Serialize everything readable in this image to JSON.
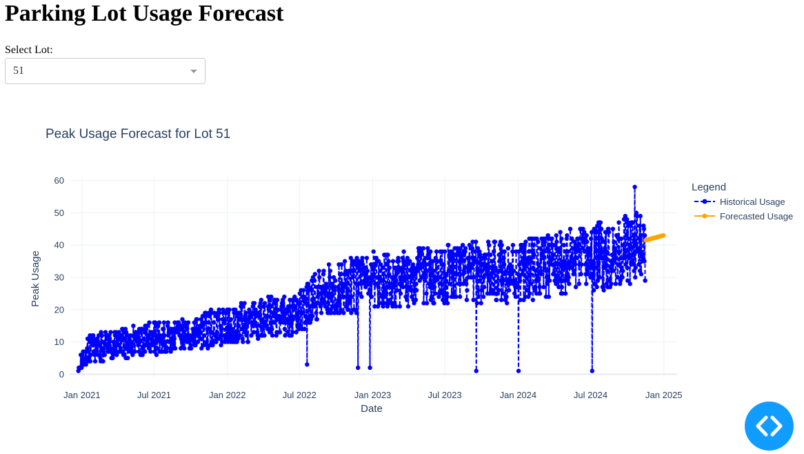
{
  "page": {
    "title": "Parking Lot Usage Forecast",
    "select_label": "Select Lot:",
    "selected_lot": "51"
  },
  "fab": {
    "icon": "code-icon",
    "color": "#119dff"
  },
  "chart_data": {
    "type": "line",
    "title": "Peak Usage Forecast for Lot 51",
    "xlabel": "Date",
    "ylabel": "Peak Usage",
    "xlim": [
      "2020-12-01",
      "2025-02-05"
    ],
    "ylim": [
      -1,
      61
    ],
    "x_ticks": [
      "Jan 2021",
      "Jul 2021",
      "Jan 2022",
      "Jul 2022",
      "Jan 2023",
      "Jul 2023",
      "Jan 2024",
      "Jul 2024",
      "Jan 2025"
    ],
    "y_ticks": [
      0,
      10,
      20,
      30,
      40,
      50,
      60
    ],
    "grid": true,
    "legend": {
      "title": "Legend",
      "position": "right"
    },
    "series": [
      {
        "name": "Historical Usage",
        "color": "#0000ff",
        "style": "dashed-line-with-markers",
        "x_start": "2020-12-23",
        "x_end": "2024-11-15",
        "frequency": "daily",
        "trend_anchors": [
          {
            "date": "2020-12-23",
            "y": 1
          },
          {
            "date": "2021-01-15",
            "y": 8
          },
          {
            "date": "2021-07-01",
            "y": 11
          },
          {
            "date": "2022-01-01",
            "y": 15
          },
          {
            "date": "2022-07-01",
            "y": 19
          },
          {
            "date": "2022-09-01",
            "y": 26
          },
          {
            "date": "2023-01-01",
            "y": 29
          },
          {
            "date": "2023-07-01",
            "y": 31
          },
          {
            "date": "2024-01-01",
            "y": 32
          },
          {
            "date": "2024-07-01",
            "y": 36
          },
          {
            "date": "2024-11-15",
            "y": 40
          }
        ],
        "peak": {
          "date": "2024-10-20",
          "y": 58
        },
        "dips": [
          {
            "date": "2022-07-20",
            "y": 3
          },
          {
            "date": "2022-11-25",
            "y": 2
          },
          {
            "date": "2022-12-25",
            "y": 2
          },
          {
            "date": "2023-09-18",
            "y": 1
          },
          {
            "date": "2024-01-02",
            "y": 1
          },
          {
            "date": "2024-07-05",
            "y": 1
          }
        ]
      },
      {
        "name": "Forecasted Usage",
        "color": "#ffa500",
        "style": "line-with-markers",
        "x_start": "2024-11-16",
        "x_end": "2024-12-31",
        "y_start": 41.5,
        "y_end": 43
      }
    ]
  }
}
